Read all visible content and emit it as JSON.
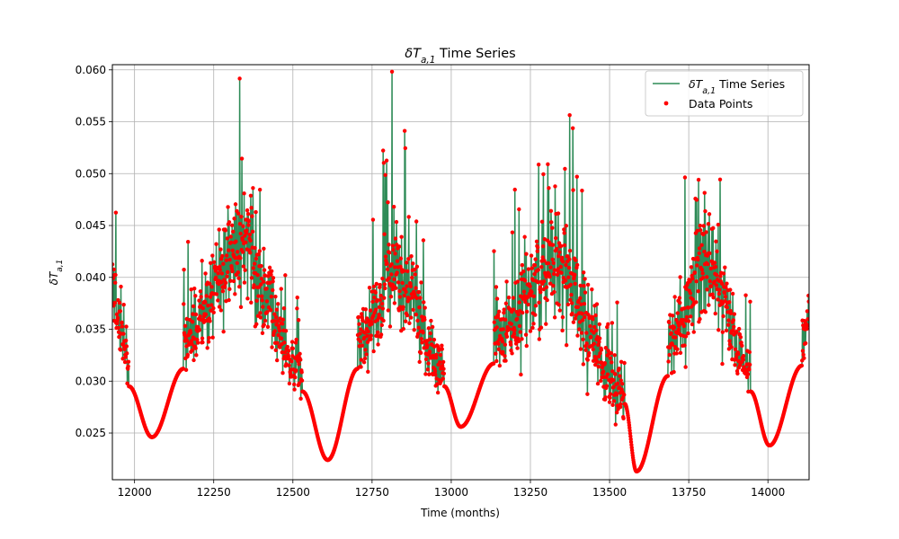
{
  "chart_data": {
    "type": "line",
    "title": {
      "symbol": "δT",
      "sub": "a,1",
      "suffix": " Time Series"
    },
    "xlabel": "Time (months)",
    "ylabel": {
      "symbol": "δT",
      "sub": "a,1"
    },
    "xlim": [
      11930,
      14130
    ],
    "ylim": [
      0.0205,
      0.0605
    ],
    "xticks": [
      12000,
      12250,
      12500,
      12750,
      13000,
      13250,
      13500,
      13750,
      14000
    ],
    "xtick_labels": [
      "12000",
      "12250",
      "12500",
      "12750",
      "13000",
      "13250",
      "13500",
      "13750",
      "14000"
    ],
    "yticks": [
      0.025,
      0.03,
      0.035,
      0.04,
      0.045,
      0.05,
      0.055,
      0.06
    ],
    "ytick_labels": [
      "0.025",
      "0.030",
      "0.035",
      "0.040",
      "0.045",
      "0.050",
      "0.055",
      "0.060"
    ],
    "grid": true,
    "legend_position": "top-right",
    "series": [
      {
        "name": {
          "symbol": "δT",
          "sub": "a,1",
          "suffix": " Time Series"
        },
        "kind": "line",
        "color": "#2e8b57"
      },
      {
        "name": {
          "text": "Data Points"
        },
        "kind": "scatter",
        "color": "#ff0000"
      }
    ],
    "segments": [
      {
        "kind": "noisy",
        "x": [
          11930,
          11982
        ],
        "base": [
          0.039,
          0.031
        ],
        "amp": [
          0.01,
          0.004
        ]
      },
      {
        "kind": "smooth",
        "x": [
          11982,
          12055,
          12155
        ],
        "y": [
          0.0295,
          0.0246,
          0.0312
        ]
      },
      {
        "kind": "noisy",
        "x": [
          12155,
          12530
        ],
        "base_peak_x": 12340,
        "base": [
          0.034,
          0.043,
          0.031
        ],
        "amp": [
          0.007,
          0.013,
          0.006
        ]
      },
      {
        "kind": "smooth",
        "x": [
          12530,
          12610,
          12705
        ],
        "y": [
          0.029,
          0.0224,
          0.0312
        ]
      },
      {
        "kind": "noisy",
        "x": [
          12705,
          12978
        ],
        "base_peak_x": 12830,
        "base": [
          0.034,
          0.041,
          0.031
        ],
        "amp": [
          0.007,
          0.012,
          0.005
        ]
      },
      {
        "kind": "smooth",
        "x": [
          12978,
          13030,
          13135
        ],
        "y": [
          0.0295,
          0.0256,
          0.0317
        ]
      },
      {
        "kind": "noisy",
        "x": [
          13135,
          13548
        ],
        "base_peak_x": 13320,
        "base": [
          0.034,
          0.041,
          0.029
        ],
        "amp": [
          0.007,
          0.014,
          0.006
        ]
      },
      {
        "kind": "smooth",
        "x": [
          13548,
          13585,
          13685
        ],
        "y": [
          0.0278,
          0.0213,
          0.0305
        ]
      },
      {
        "kind": "noisy",
        "x": [
          13685,
          13945
        ],
        "base_peak_x": 13810,
        "base": [
          0.034,
          0.041,
          0.031
        ],
        "amp": [
          0.007,
          0.012,
          0.005
        ]
      },
      {
        "kind": "smooth",
        "x": [
          13945,
          14005,
          14108
        ],
        "y": [
          0.029,
          0.0238,
          0.0315
        ]
      },
      {
        "kind": "noisy",
        "x": [
          14108,
          14130
        ],
        "base": [
          0.034,
          0.036
        ],
        "amp": [
          0.006,
          0.007
        ]
      }
    ]
  }
}
